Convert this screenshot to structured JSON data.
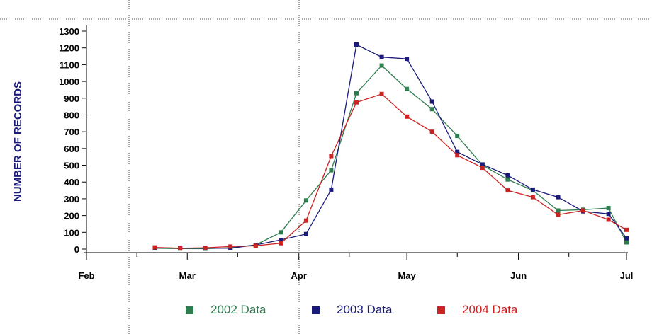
{
  "chart_data": {
    "type": "line",
    "title": "",
    "xlabel": "",
    "ylabel": "NUMBER OF RECORDS",
    "ylim": [
      0,
      1300
    ],
    "yticks": [
      "0",
      "100",
      "200",
      "300",
      "400",
      "500",
      "600",
      "700",
      "800",
      "900",
      "1000",
      "1100",
      "1200",
      "1300"
    ],
    "x_tick_labels": [
      "Feb",
      "Mar",
      "Apr",
      "May",
      "Jun",
      "Jul"
    ],
    "x_dates": [
      "02-20",
      "02-27",
      "03-06",
      "03-13",
      "03-20",
      "03-27",
      "04-03",
      "04-10",
      "04-17",
      "04-24",
      "05-01",
      "05-08",
      "05-15",
      "05-22",
      "05-29",
      "06-05",
      "06-12",
      "06-19",
      "06-26",
      "07-01"
    ],
    "series": [
      {
        "name": "2002 Data",
        "color": "#2e7d4f",
        "values": [
          5,
          3,
          2,
          8,
          25,
          100,
          290,
          470,
          930,
          1095,
          955,
          835,
          675,
          500,
          415,
          350,
          230,
          235,
          245,
          40
        ]
      },
      {
        "name": "2003 Data",
        "color": "#1a1a7a",
        "values": [
          8,
          5,
          6,
          5,
          25,
          55,
          90,
          355,
          1220,
          1145,
          1135,
          880,
          580,
          505,
          440,
          355,
          310,
          225,
          210,
          65
        ]
      },
      {
        "name": "2004 Data",
        "color": "#cc2222",
        "values": [
          10,
          5,
          8,
          15,
          20,
          35,
          170,
          555,
          875,
          925,
          790,
          700,
          560,
          485,
          350,
          310,
          205,
          230,
          175,
          115
        ]
      }
    ],
    "grid": false,
    "legend_position": "bottom"
  }
}
